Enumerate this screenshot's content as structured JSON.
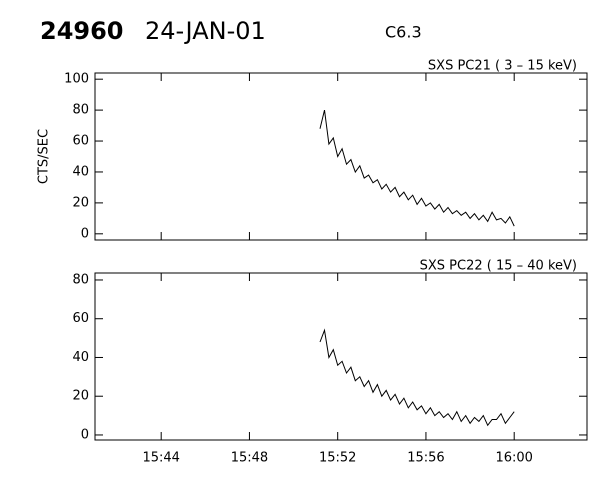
{
  "header": {
    "id": "24960",
    "date": "24-JAN-01",
    "class": "C6.3"
  },
  "chart_data": [
    {
      "type": "line",
      "title": "SXS PC21  (  3 – 15 keV)",
      "ylabel": "CTS/SEC",
      "x": [
        951.2,
        951.4,
        951.6,
        951.8,
        952.0,
        952.2,
        952.4,
        952.6,
        952.8,
        953.0,
        953.2,
        953.4,
        953.6,
        953.8,
        954.0,
        954.2,
        954.4,
        954.6,
        954.8,
        955.0,
        955.2,
        955.4,
        955.6,
        955.8,
        956.0,
        956.2,
        956.4,
        956.6,
        956.8,
        957.0,
        957.2,
        957.4,
        957.6,
        957.8,
        958.0,
        958.2,
        958.4,
        958.6,
        958.8,
        959.0,
        959.2,
        959.4,
        959.6,
        959.8,
        960.0
      ],
      "series": [
        {
          "color": "#000000",
          "values": [
            68,
            80,
            58,
            62,
            50,
            55,
            45,
            48,
            40,
            44,
            36,
            38,
            33,
            35,
            29,
            32,
            27,
            30,
            24,
            27,
            22,
            25,
            19,
            23,
            18,
            20,
            16,
            19,
            14,
            17,
            13,
            15,
            12,
            14,
            10,
            13,
            9,
            12,
            8,
            14,
            9,
            10,
            7,
            11,
            5
          ]
        }
      ],
      "xlim": [
        941,
        963.3
      ],
      "ylim": [
        -4,
        104
      ],
      "yticks": [
        0,
        20,
        40,
        60,
        80,
        100
      ]
    },
    {
      "type": "line",
      "title": "SXS PC22  ( 15 – 40 keV)",
      "x": [
        951.2,
        951.4,
        951.6,
        951.8,
        952.0,
        952.2,
        952.4,
        952.6,
        952.8,
        953.0,
        953.2,
        953.4,
        953.6,
        953.8,
        954.0,
        954.2,
        954.4,
        954.6,
        954.8,
        955.0,
        955.2,
        955.4,
        955.6,
        955.8,
        956.0,
        956.2,
        956.4,
        956.6,
        956.8,
        957.0,
        957.2,
        957.4,
        957.6,
        957.8,
        958.0,
        958.2,
        958.4,
        958.6,
        958.8,
        959.0,
        959.2,
        959.4,
        959.6,
        959.8,
        960.0
      ],
      "series": [
        {
          "color": "#000000",
          "values": [
            48,
            54,
            40,
            44,
            36,
            38,
            32,
            35,
            28,
            30,
            25,
            28,
            22,
            26,
            20,
            23,
            18,
            21,
            16,
            19,
            14,
            17,
            13,
            15,
            11,
            14,
            10,
            12,
            9,
            11,
            8,
            12,
            7,
            10,
            6,
            9,
            7,
            10,
            5,
            8,
            8,
            11,
            6,
            9,
            12
          ]
        }
      ],
      "xlim": [
        941,
        963.3
      ],
      "ylim": [
        -2.6,
        83.6
      ],
      "yticks": [
        0,
        20,
        40,
        60,
        80
      ],
      "xticks": [
        {
          "value": 944,
          "label": "15:44"
        },
        {
          "value": 948,
          "label": "15:48"
        },
        {
          "value": 952,
          "label": "15:52"
        },
        {
          "value": 956,
          "label": "15:56"
        },
        {
          "value": 960,
          "label": "16:00"
        }
      ]
    }
  ]
}
